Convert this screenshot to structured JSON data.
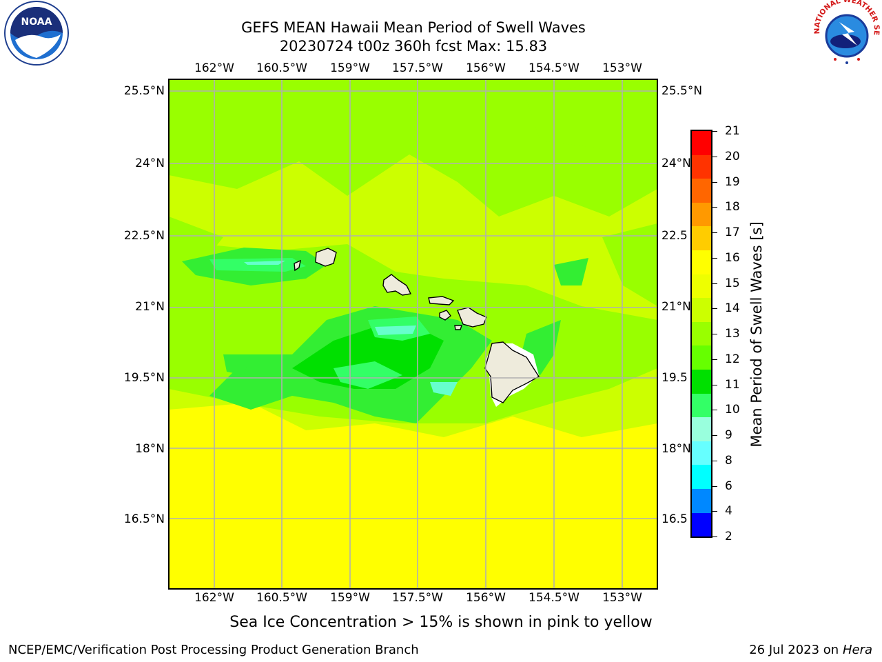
{
  "title": {
    "line1": "GEFS MEAN Hawaii Mean Period of Swell Waves",
    "line2": "20230724 t00z 360h fcst   Max: 15.83"
  },
  "map": {
    "lon_labels": [
      "162°W",
      "160.5°W",
      "159°W",
      "157.5°W",
      "156°W",
      "154.5°W",
      "153°W"
    ],
    "lat_labels": [
      "25.5°N",
      "24°N",
      "22.5°N",
      "21°N",
      "19.5°N",
      "18°N",
      "16.5°N"
    ],
    "right_lat_labels": [
      "25.5°N",
      "24°N",
      "22.5",
      "21°N",
      "19.5",
      "18°N",
      "16.5"
    ],
    "extent": {
      "lon_min": -163.0,
      "lon_max": -152.2,
      "lat_min": 15.0,
      "lat_max": 25.7
    },
    "ocean_colors": {
      "yellow": "#ffff00",
      "yellow_green": "#ccff00",
      "lime": "#99ff00",
      "green": "#33ee33",
      "bright_green": "#00e000",
      "mint": "#33ff66",
      "aqua": "#66ffcc"
    },
    "land_color": "#eeebdc",
    "grid_color": "#b0b0b0"
  },
  "colorbar": {
    "label": "Mean Period of Swell Waves [s]",
    "ticks": [
      "21",
      "20",
      "19",
      "18",
      "17",
      "16",
      "15",
      "14",
      "13",
      "12",
      "11",
      "10",
      "9",
      "8",
      "6",
      "4",
      "2"
    ],
    "colors": [
      "#ff0000",
      "#ff3300",
      "#ff6600",
      "#ff9900",
      "#ffcc00",
      "#ffff00",
      "#eeff00",
      "#ccff00",
      "#99ff00",
      "#66ff00",
      "#00e000",
      "#33ff66",
      "#99ffdd",
      "#66ffff",
      "#00ffff",
      "#0088ff",
      "#0000ff"
    ]
  },
  "note": "Sea Ice Concentration > 15% is shown in pink to yellow",
  "footer": {
    "left": "NCEP/EMC/Verification Post Processing Product Generation Branch",
    "right_prefix": "26 Jul 2023 on ",
    "right_host": "Hera"
  },
  "logos": {
    "noaa_text": "NOAA",
    "nws_arc": "NATIONAL WEATHER SERVICE"
  }
}
